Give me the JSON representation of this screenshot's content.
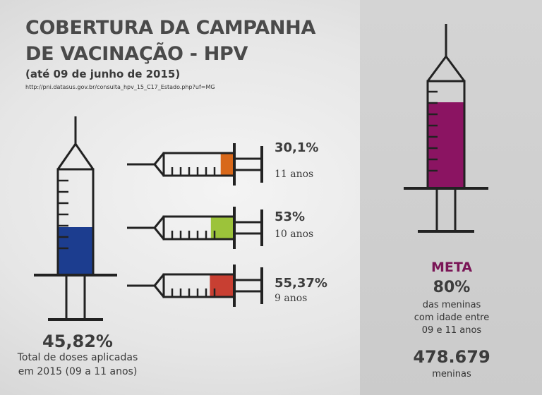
{
  "title_line1": "COBERTURA DA CAMPANHA",
  "title_line2": "DE VACINAÇÃO - HPV",
  "subtitle": "(até 09 de junho de 2015)",
  "source_url": "http://pni.datasus.gov.br/consulta_hpv_15_C17_Estado.php?uf=MG",
  "total": {
    "percent_label": "45,82%",
    "value": 45.82,
    "desc_line1": "Total de doses aplicadas",
    "desc_line2": "em 2015 (09 a 11 anos)",
    "color": "#1c3d8f"
  },
  "ages": [
    {
      "percent_label": "30,1%",
      "value": 30.1,
      "age_label": "11 anos",
      "color": "#d8681a"
    },
    {
      "percent_label": "53%",
      "value": 53,
      "age_label": "10 anos",
      "color": "#9cc33a"
    },
    {
      "percent_label": "55,37%",
      "value": 55.37,
      "age_label": "9 anos",
      "color": "#c83f32"
    }
  ],
  "meta": {
    "label": "META",
    "percent_label": "80%",
    "value": 80,
    "desc_line1": "das meninas",
    "desc_line2": "com idade entre",
    "desc_line3": "09 e 11 anos",
    "count": "478.679",
    "count_unit": "meninas",
    "color": "#8b1462"
  },
  "colors": {
    "text": "#3c3c3c",
    "ink": "#222222",
    "accent_meta": "#7a1556"
  },
  "icons": [
    "syringe-icon"
  ]
}
